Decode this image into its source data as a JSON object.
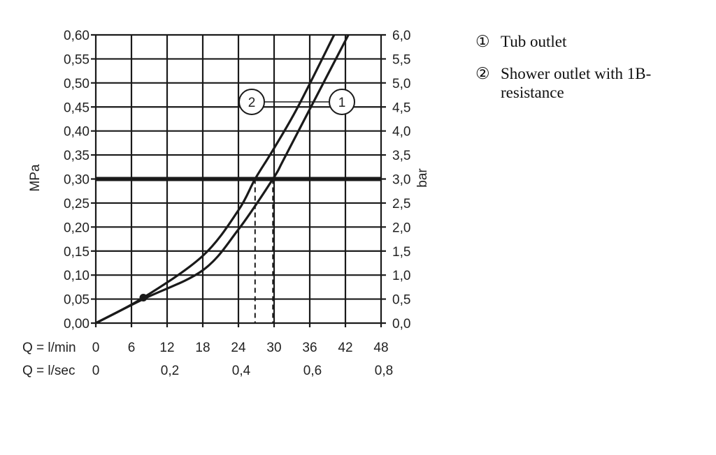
{
  "chart_data": {
    "type": "line",
    "ylabel_left": "MPa",
    "ylabel_right": "bar",
    "xlabel_row1": "Q = l/min",
    "xlabel_row2": "Q = l/sec",
    "xlim": [
      0,
      48
    ],
    "ylim": [
      0,
      0.6
    ],
    "grid": true,
    "x_ticks": [
      "0",
      "6",
      "12",
      "18",
      "24",
      "30",
      "36",
      "42",
      "48"
    ],
    "x_ticks_values": [
      0,
      6,
      12,
      18,
      24,
      30,
      36,
      42,
      48
    ],
    "x2_ticks": [
      "0",
      "0,2",
      "0,4",
      "0,6",
      "0,8"
    ],
    "x2_ticks_values": [
      0,
      12,
      24,
      36,
      48
    ],
    "y_ticks_left": [
      "0,00",
      "0,05",
      "0,10",
      "0,15",
      "0,20",
      "0,25",
      "0,30",
      "0,35",
      "0,40",
      "0,45",
      "0,50",
      "0,55",
      "0,60"
    ],
    "y_ticks_right": [
      "0,0",
      "0,5",
      "1,0",
      "1,5",
      "2,0",
      "2,5",
      "3,0",
      "3,5",
      "4,0",
      "4,5",
      "5,0",
      "5,5",
      "6,0"
    ],
    "y_ticks_values": [
      0,
      0.05,
      0.1,
      0.15,
      0.2,
      0.25,
      0.3,
      0.35,
      0.4,
      0.45,
      0.5,
      0.55,
      0.6
    ],
    "reference_line": {
      "y": 0.3
    },
    "reference_drops": [
      26.8,
      29.8
    ],
    "marker_point": {
      "x": 8,
      "y": 0.053
    },
    "series": [
      {
        "name": "1",
        "x": [
          0,
          8,
          18,
          24,
          29.8,
          31.5,
          36.2,
          42.5
        ],
        "y": [
          0,
          0.05,
          0.11,
          0.195,
          0.3,
          0.338,
          0.45,
          0.6
        ]
      },
      {
        "name": "2",
        "x": [
          0,
          8,
          18,
          24,
          26.8,
          29.8,
          34,
          40.1
        ],
        "y": [
          0,
          0.053,
          0.14,
          0.235,
          0.3,
          0.36,
          0.45,
          0.6
        ]
      }
    ],
    "callouts": [
      "2",
      "1"
    ],
    "color": "#1a1a1a"
  },
  "legend": [
    {
      "num": "①",
      "text": "Tub outlet"
    },
    {
      "num": "②",
      "text": "Shower outlet with 1B-resistance"
    }
  ]
}
